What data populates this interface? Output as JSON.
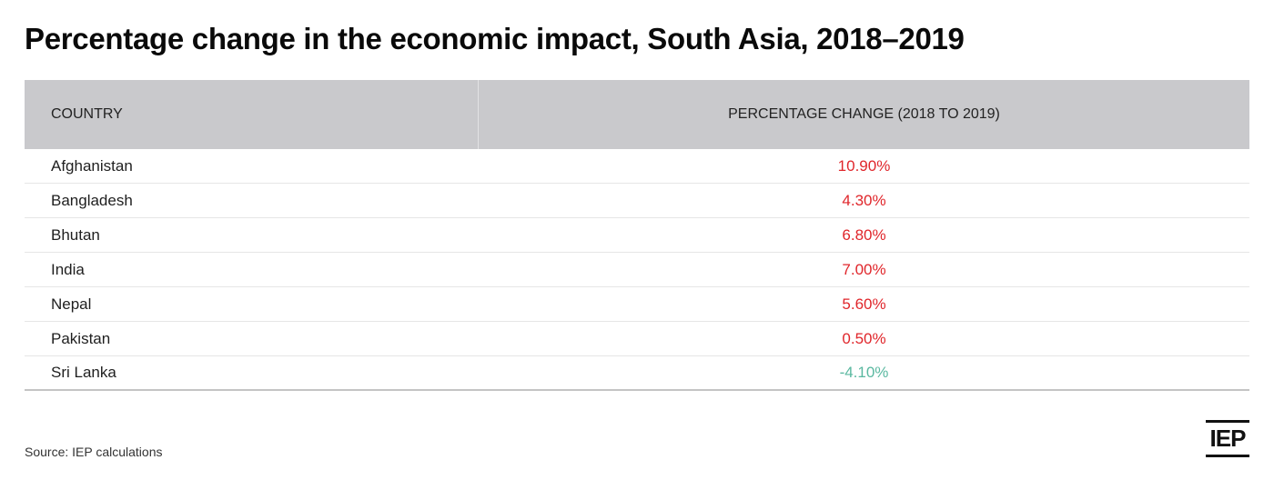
{
  "title": "Percentage change in the economic impact, South Asia, 2018–2019",
  "source": "Source: IEP calculations",
  "logo_text": "IEP",
  "colors": {
    "header_bg": "#c9c9cc",
    "positive": "#e0262b",
    "negative": "#5ab8a0"
  },
  "chart_data": {
    "type": "table",
    "columns": [
      "COUNTRY",
      "PERCENTAGE CHANGE (2018 TO 2019)"
    ],
    "rows": [
      {
        "country": "Afghanistan",
        "change": "10.90%",
        "value": 10.9
      },
      {
        "country": "Bangladesh",
        "change": "4.30%",
        "value": 4.3
      },
      {
        "country": "Bhutan",
        "change": "6.80%",
        "value": 6.8
      },
      {
        "country": "India",
        "change": "7.00%",
        "value": 7.0
      },
      {
        "country": "Nepal",
        "change": "5.60%",
        "value": 5.6
      },
      {
        "country": "Pakistan",
        "change": "0.50%",
        "value": 0.5
      },
      {
        "country": "Sri Lanka",
        "change": "-4.10%",
        "value": -4.1
      }
    ]
  }
}
